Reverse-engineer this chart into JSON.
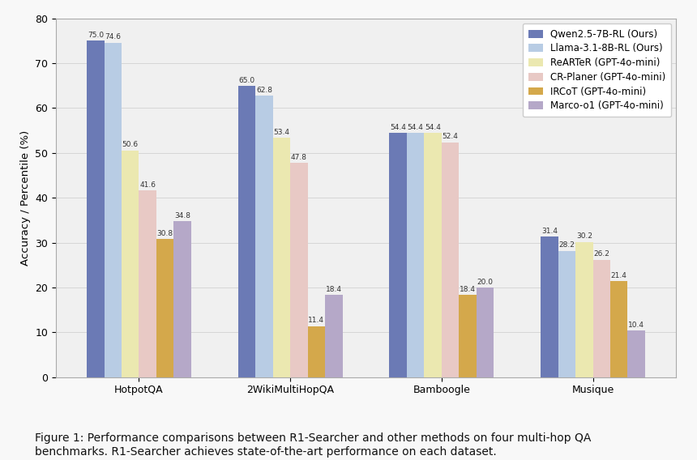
{
  "categories": [
    "HotpotQA",
    "2WikiMultiHopQA",
    "Bamboogle",
    "Musique"
  ],
  "series": [
    {
      "label": "Qwen2.5-7B-RL (Ours)",
      "color": "#6b7ab5",
      "values": [
        75.0,
        65.0,
        54.4,
        31.4
      ]
    },
    {
      "label": "Llama-3.1-8B-RL (Ours)",
      "color": "#b8cce4",
      "values": [
        74.6,
        62.8,
        54.4,
        28.2
      ]
    },
    {
      "label": "ReARTeR (GPT-4o-mini)",
      "color": "#ebe8b0",
      "values": [
        50.6,
        53.4,
        54.4,
        30.2
      ]
    },
    {
      "label": "CR-Planer (GPT-4o-mini)",
      "color": "#e8c9c5",
      "values": [
        41.6,
        47.8,
        52.4,
        26.2
      ]
    },
    {
      "label": "IRCoT (GPT-4o-mini)",
      "color": "#d4a84b",
      "values": [
        30.8,
        11.4,
        18.4,
        21.4
      ]
    },
    {
      "label": "Marco-o1 (GPT-4o-mini)",
      "color": "#b5a8c8",
      "values": [
        34.8,
        18.4,
        20.0,
        10.4
      ]
    }
  ],
  "ylabel": "Accuracy / Percentile (%)",
  "ylim": [
    0,
    80
  ],
  "yticks": [
    0,
    10,
    20,
    30,
    40,
    50,
    60,
    70,
    80
  ],
  "caption_line1": "Figure 1: Performance comparisons between R1-Searcher and other methods on four multi-hop QA",
  "caption_line2": "benchmarks. R1-Searcher achieves state-of-the-art performance on each dataset.",
  "background_color": "#f8f8f8",
  "plot_bg_color": "#f0f0f0",
  "bar_width": 0.115,
  "legend_loc": "upper right",
  "legend_fontsize": 8.5,
  "tick_fontsize": 9,
  "ylabel_fontsize": 9.5,
  "value_fontsize": 6.5,
  "caption_fontsize": 10
}
